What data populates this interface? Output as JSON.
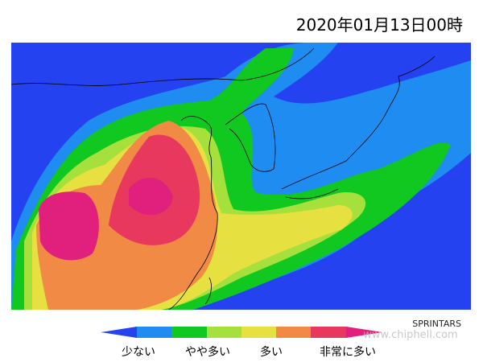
{
  "header": {
    "title": "2020年01月13日00時"
  },
  "map": {
    "credit": "SPRINTARS",
    "watermark": "www.chiphell.com"
  },
  "legend": {
    "labels": [
      "少ない",
      "やや多い",
      "多い",
      "非常に多い"
    ]
  }
}
